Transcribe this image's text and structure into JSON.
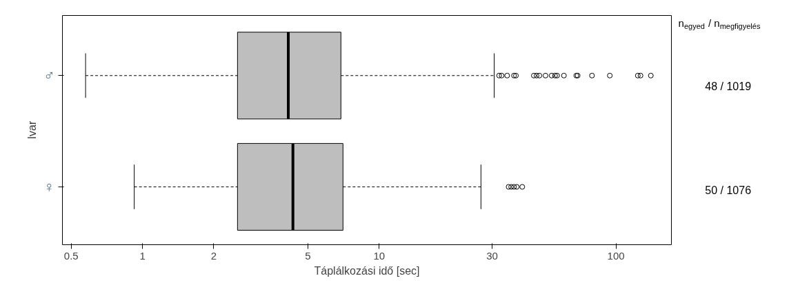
{
  "chart_data": {
    "type": "box",
    "orientation": "horizontal",
    "xlabel": "Táplálkozási idő [sec]",
    "ylabel": "Ivar",
    "categories": [
      "♂",
      "♀"
    ],
    "log": "x",
    "xlim": [
      0.459,
      171.5
    ],
    "xticks": [
      0.5,
      1,
      2,
      5,
      10,
      30,
      100
    ],
    "grid": false,
    "color": "#bebebe",
    "boxes": [
      {
        "low": 0.575,
        "q1": 2.52,
        "median": 4.13,
        "q3": 6.89,
        "high": 30.6,
        "outliers": [
          32.1,
          32.9,
          34.7,
          37.1,
          37.8,
          45.0,
          46.2,
          47.5,
          50.4,
          53.5,
          55.3,
          56.4,
          60.3,
          68.0,
          68.9,
          79.2,
          94.2,
          123.7,
          127.0,
          140.4
        ]
      },
      {
        "low": 0.923,
        "q1": 2.52,
        "median": 4.32,
        "q3": 7.03,
        "high": 26.9,
        "outliers": [
          35.2,
          36.1,
          37.1,
          38.1,
          40.2
        ]
      }
    ],
    "annotations": [
      "n$_{egyed}$ / n$_{megfigyelés}$",
      "48 / 1019",
      "50 / 1076"
    ]
  }
}
